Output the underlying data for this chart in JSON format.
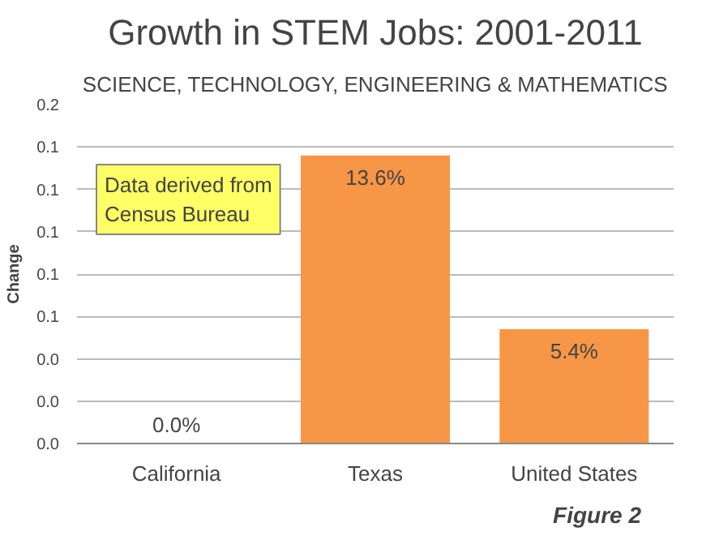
{
  "chart_data": {
    "type": "bar",
    "title": "Growth in STEM Jobs: 2001-2011",
    "subtitle": "SCIENCE, TECHNOLOGY, ENGINEERING & MATHEMATICS",
    "ylabel": "Change",
    "categories": [
      "California",
      "Texas",
      "United States"
    ],
    "values": [
      0.0,
      0.136,
      0.054
    ],
    "value_labels": [
      "0.0%",
      "13.6%",
      "5.4%"
    ],
    "color": "#f79646",
    "ylim": [
      0,
      0.16
    ],
    "yticks": [
      {
        "value": 0,
        "label": "0.0"
      },
      {
        "value": 0.02,
        "label": "0.0"
      },
      {
        "value": 0.04,
        "label": "0.0"
      },
      {
        "value": 0.06,
        "label": "0.1"
      },
      {
        "value": 0.08,
        "label": "0.1"
      },
      {
        "value": 0.1,
        "label": "0.1"
      },
      {
        "value": 0.12,
        "label": "0.1"
      },
      {
        "value": 0.14,
        "label": "0.1"
      },
      {
        "value": 0.16,
        "label": "0.2"
      }
    ],
    "grid": "y",
    "annotations": [
      "Data derived from\nCensus Bureau",
      "Figure 2"
    ]
  }
}
